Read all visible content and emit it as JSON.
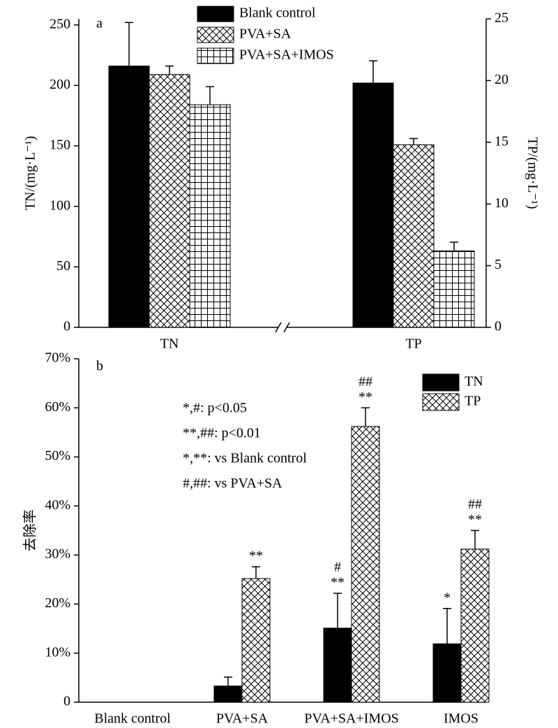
{
  "chart_data": [
    {
      "type": "bar",
      "label": "a",
      "categories": [
        "TN",
        "TP"
      ],
      "category_axis": [
        "y",
        "y2"
      ],
      "ylabel": "TN/(mg·L⁻¹)",
      "y2label": "TP/(mg·L⁻¹)",
      "ylim": [
        0,
        255
      ],
      "yticks": [
        0,
        50,
        100,
        150,
        200,
        250
      ],
      "y2lim": [
        0,
        25
      ],
      "y2ticks": [
        0,
        5,
        10,
        15,
        20,
        25
      ],
      "series": [
        {
          "name": "Blank control",
          "color": "#000000",
          "pattern": "solid",
          "values": [
            216,
            19.8
          ],
          "errors": [
            36,
            1.8
          ]
        },
        {
          "name": "PVA+SA",
          "color": "#000000",
          "pattern": "crosshatch",
          "values": [
            209,
            14.8
          ],
          "errors": [
            7,
            0.5
          ]
        },
        {
          "name": "PVA+SA+IMOS",
          "color": "#000000",
          "pattern": "grid",
          "values": [
            184,
            6.2
          ],
          "errors": [
            15,
            0.7
          ]
        }
      ]
    },
    {
      "type": "bar",
      "label": "b",
      "categories": [
        "Blank control",
        "PVA+SA",
        "PVA+SA+IMOS",
        "IMOS"
      ],
      "ylabel": "去除率",
      "ylim": [
        0,
        70
      ],
      "yticks": [
        0,
        {
          "value": 10,
          "label": "10%"
        },
        {
          "value": 20,
          "label": "20%"
        },
        {
          "value": 30,
          "label": "30%"
        },
        {
          "value": 40,
          "label": "40%"
        },
        {
          "value": 50,
          "label": "50%"
        },
        {
          "value": 60,
          "label": "60%"
        },
        {
          "value": 70,
          "label": "70%"
        }
      ],
      "series": [
        {
          "name": "TN",
          "color": "#000000",
          "pattern": "solid",
          "values": [
            0,
            3.3,
            15.1,
            11.9
          ],
          "errors": [
            0,
            1.8,
            7.1,
            7.2
          ],
          "significance": [
            null,
            null,
            [
              "#",
              "**"
            ],
            [
              "*"
            ]
          ]
        },
        {
          "name": "TP",
          "color": "#000000",
          "pattern": "crosshatch",
          "values": [
            0,
            25.2,
            56.2,
            31.2
          ],
          "errors": [
            0,
            2.4,
            3.8,
            3.8
          ],
          "significance": [
            null,
            [
              "**"
            ],
            [
              "##",
              "**"
            ],
            [
              "##",
              "**"
            ]
          ]
        }
      ],
      "notes": [
        "*,#: p<0.05",
        "**,##: p<0.01",
        "*,**: vs Blank control",
        "#,##: vs PVA+SA"
      ]
    }
  ]
}
